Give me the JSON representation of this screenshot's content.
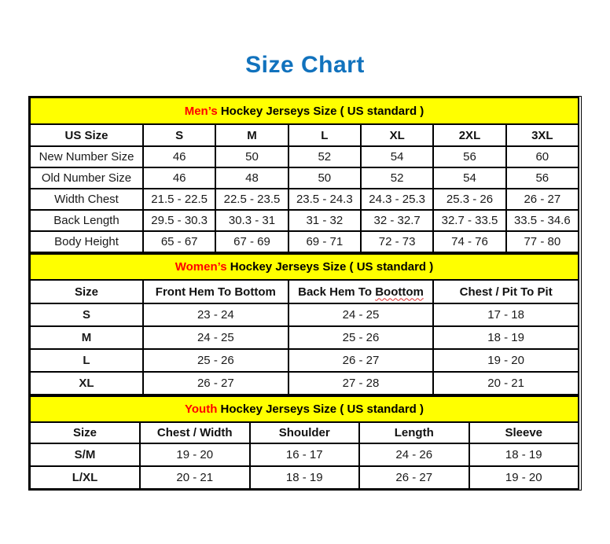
{
  "page": {
    "title": "Size Chart"
  },
  "colors": {
    "title_blue": "#1172BD",
    "band_yellow": "#FFFF00",
    "highlight_red": "#FF0000",
    "squiggle_red": "#E03030",
    "border_black": "#000000"
  },
  "sections": [
    {
      "id": "mens",
      "band": {
        "highlight": "Men’s",
        "rest": "Hockey Jerseys Size ( US standard )"
      },
      "columns": [
        {
          "label": "US Size"
        },
        {
          "label": "S"
        },
        {
          "label": "M"
        },
        {
          "label": "L"
        },
        {
          "label": "XL"
        },
        {
          "label": "2XL"
        },
        {
          "label": "3XL"
        }
      ],
      "rows": [
        {
          "label": "New Number Size",
          "values": [
            "46",
            "50",
            "52",
            "54",
            "56",
            "60"
          ]
        },
        {
          "label": "Old Number Size",
          "values": [
            "46",
            "48",
            "50",
            "52",
            "54",
            "56"
          ]
        },
        {
          "label": "Width Chest",
          "values": [
            "21.5 - 22.5",
            "22.5 - 23.5",
            "23.5 - 24.3",
            "24.3 - 25.3",
            "25.3 - 26",
            "26 - 27"
          ]
        },
        {
          "label": "Back Length",
          "values": [
            "29.5 - 30.3",
            "30.3 - 31",
            "31 - 32",
            "32 - 32.7",
            "32.7 - 33.5",
            "33.5 - 34.6"
          ]
        },
        {
          "label": "Body Height",
          "values": [
            "65 - 67",
            "67 - 69",
            "69 - 71",
            "72 - 73",
            "74 - 76",
            "77 - 80"
          ]
        }
      ]
    },
    {
      "id": "womens",
      "band": {
        "highlight": "Women’s",
        "rest": "Hockey Jerseys Size ( US standard )"
      },
      "columns": [
        {
          "label": "Size"
        },
        {
          "label": "Front Hem To Bottom"
        },
        {
          "label": "Back Hem To Boottom",
          "squiggle_word": "Boottom"
        },
        {
          "label": "Chest / Pit To Pit"
        }
      ],
      "rows": [
        {
          "label": "S",
          "values": [
            "23 - 24",
            "24 - 25",
            "17 - 18"
          ]
        },
        {
          "label": "M",
          "values": [
            "24 - 25",
            "25 - 26",
            "18 - 19"
          ]
        },
        {
          "label": "L",
          "values": [
            "25 - 26",
            "26 - 27",
            "19 - 20"
          ]
        },
        {
          "label": "XL",
          "values": [
            "26 - 27",
            "27 - 28",
            "20 - 21"
          ]
        }
      ]
    },
    {
      "id": "youth",
      "band": {
        "highlight": "Youth",
        "rest": "Hockey Jerseys Size ( US standard )"
      },
      "columns": [
        {
          "label": "Size"
        },
        {
          "label": "Chest / Width"
        },
        {
          "label": "Shoulder"
        },
        {
          "label": "Length"
        },
        {
          "label": "Sleeve"
        }
      ],
      "rows": [
        {
          "label": "S/M",
          "values": [
            "19 - 20",
            "16 - 17",
            "24 - 26",
            "18 - 19"
          ]
        },
        {
          "label": "L/XL",
          "values": [
            "20 - 21",
            "18 - 19",
            "26 - 27",
            "19 - 20"
          ]
        }
      ]
    }
  ]
}
